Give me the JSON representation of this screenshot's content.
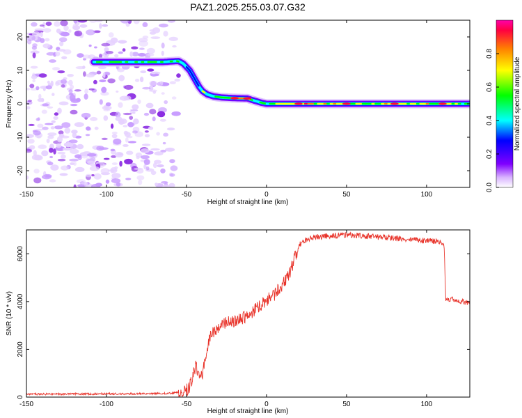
{
  "title": "PAZ1.2025.255.03.07.G32",
  "chart_data": [
    {
      "type": "heatmap",
      "name": "spectrogram",
      "xlabel": "Height of straight line (km)",
      "ylabel": "Frequency (Hz)",
      "xlim": [
        -150,
        127
      ],
      "ylim": [
        -25,
        25
      ],
      "xticks": [
        -150,
        -100,
        -50,
        0,
        50,
        100
      ],
      "yticks": [
        -20,
        -10,
        0,
        10,
        20
      ],
      "colorbar": {
        "label": "Normalized spectral amplitude",
        "range": [
          0.0,
          1.0
        ],
        "ticks": [
          0.0,
          0.2,
          0.4,
          0.6,
          0.8
        ],
        "colors": [
          "#ffffff",
          "#cc88ff",
          "#8000ff",
          "#0000ff",
          "#00ffff",
          "#00ff00",
          "#ffff00",
          "#ff8000",
          "#ff0000"
        ]
      },
      "signal_track": {
        "x": [
          -108,
          -95,
          -80,
          -65,
          -55,
          -52,
          -48,
          -45,
          -42,
          -40,
          -37,
          -33,
          -28,
          -20,
          -12,
          -8,
          -3,
          0,
          20,
          50,
          80,
          110,
          127
        ],
        "frequency_hz": [
          12.5,
          12.5,
          12.5,
          12.5,
          12.8,
          12.0,
          10.0,
          7.5,
          5.0,
          3.8,
          2.8,
          2.2,
          1.9,
          1.7,
          1.6,
          1.0,
          0.3,
          0.0,
          0.0,
          0.0,
          0.0,
          0.0,
          0.0
        ],
        "amplitude": [
          0.55,
          0.6,
          0.6,
          0.6,
          0.65,
          0.5,
          0.35,
          0.4,
          0.5,
          0.7,
          0.5,
          0.6,
          0.65,
          0.9,
          0.85,
          0.5,
          0.6,
          0.6,
          0.95,
          0.85,
          0.8,
          0.85,
          0.6
        ]
      },
      "noise_region_x": [
        -150,
        -60
      ]
    },
    {
      "type": "line",
      "name": "snr",
      "xlabel": "Height of straight line (km)",
      "ylabel": "SNR (10 * v/v)",
      "xlim": [
        -150,
        127
      ],
      "ylim": [
        0,
        7000
      ],
      "xticks": [
        -150,
        -100,
        -50,
        0,
        50,
        100
      ],
      "yticks": [
        0,
        2000,
        4000,
        6000
      ],
      "series": [
        {
          "name": "SNR",
          "color": "#e8332a",
          "x": [
            -150,
            -120,
            -90,
            -70,
            -60,
            -55,
            -52,
            -50,
            -48,
            -46,
            -44,
            -42,
            -40,
            -38,
            -36,
            -34,
            -32,
            -30,
            -25,
            -20,
            -15,
            -10,
            -5,
            0,
            5,
            10,
            15,
            18,
            20,
            22,
            25,
            30,
            40,
            50,
            60,
            70,
            80,
            90,
            100,
            108,
            110,
            111,
            112,
            115,
            120,
            127
          ],
          "y": [
            120,
            130,
            140,
            150,
            160,
            200,
            250,
            300,
            450,
            900,
            1300,
            800,
            1000,
            1700,
            2400,
            2700,
            2800,
            2900,
            3100,
            3200,
            3300,
            3500,
            3800,
            4050,
            4300,
            4700,
            5300,
            5900,
            6300,
            6500,
            6600,
            6700,
            6750,
            6800,
            6750,
            6700,
            6650,
            6600,
            6550,
            6500,
            6400,
            6300,
            4100,
            4100,
            4000,
            3950
          ]
        }
      ]
    }
  ]
}
